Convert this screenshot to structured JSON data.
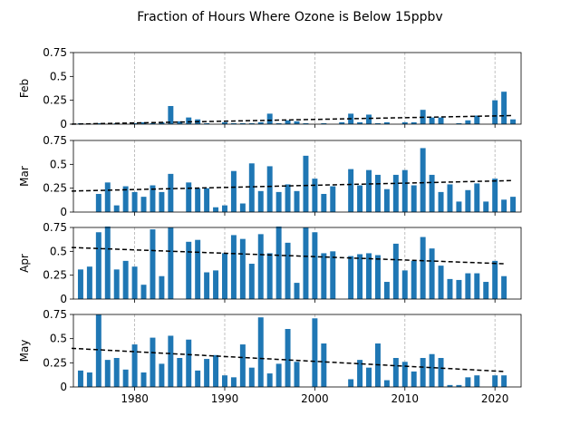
{
  "title": "Fraction of Hours Where Ozone is Below 15ppbv",
  "chart_data": [
    {
      "type": "bar",
      "ylabel": "Feb",
      "color": "#1f77b4",
      "x": [
        1974,
        1975,
        1976,
        1977,
        1978,
        1979,
        1980,
        1981,
        1982,
        1983,
        1984,
        1985,
        1986,
        1987,
        1988,
        1989,
        1990,
        1991,
        1992,
        1993,
        1994,
        1995,
        1996,
        1997,
        1998,
        1999,
        2000,
        2001,
        2002,
        2003,
        2004,
        2005,
        2006,
        2007,
        2008,
        2009,
        2010,
        2011,
        2012,
        2013,
        2014,
        2015,
        2016,
        2017,
        2018,
        2019,
        2020,
        2021,
        2022
      ],
      "values": [
        0.01,
        0,
        0.01,
        0,
        0.01,
        0,
        0.01,
        0.02,
        0.01,
        0.02,
        0.19,
        0.03,
        0.07,
        0.05,
        0.01,
        0,
        0.02,
        0.01,
        0.01,
        0.01,
        0.02,
        0.11,
        0.01,
        0.04,
        0.03,
        0.01,
        0,
        0.01,
        0,
        0.02,
        0.11,
        0.02,
        0.1,
        0.01,
        0.02,
        0,
        0.02,
        0.02,
        0.15,
        0.07,
        0.07,
        0,
        0.01,
        0.04,
        0.09,
        0,
        0.25,
        0.34,
        0.05
      ],
      "trend": {
        "x": [
          1973,
          2022
        ],
        "values": [
          0.0,
          0.09
        ]
      },
      "xlim": [
        1973.2,
        2022.9
      ],
      "xticks": [
        1980,
        1990,
        2000,
        2010,
        2020
      ],
      "ylim": [
        0,
        0.75
      ],
      "yticks": [
        0,
        0.25,
        0.5,
        0.75
      ]
    },
    {
      "type": "bar",
      "ylabel": "Mar",
      "color": "#1f77b4",
      "x": [
        1974,
        1975,
        1976,
        1977,
        1978,
        1979,
        1980,
        1981,
        1982,
        1983,
        1984,
        1985,
        1986,
        1987,
        1988,
        1989,
        1990,
        1991,
        1992,
        1993,
        1994,
        1995,
        1996,
        1997,
        1998,
        1999,
        2000,
        2001,
        2002,
        2003,
        2004,
        2005,
        2006,
        2007,
        2008,
        2009,
        2010,
        2011,
        2012,
        2013,
        2014,
        2015,
        2016,
        2017,
        2018,
        2019,
        2020,
        2021,
        2022
      ],
      "values": [
        0,
        0,
        0.19,
        0.31,
        0.07,
        0.27,
        0.21,
        0.16,
        0.28,
        0.21,
        0.4,
        0,
        0.31,
        0.25,
        0.25,
        0.05,
        0.07,
        0.43,
        0.09,
        0.51,
        0.22,
        0.48,
        0.21,
        0.29,
        0.22,
        0.59,
        0.35,
        0.19,
        0.27,
        0,
        0.45,
        0.28,
        0.44,
        0.39,
        0.24,
        0.39,
        0.44,
        0.28,
        0.67,
        0.39,
        0.21,
        0.29,
        0.11,
        0.23,
        0.3,
        0.11,
        0.35,
        0.13,
        0.16
      ],
      "trend": {
        "x": [
          1973,
          2022
        ],
        "values": [
          0.22,
          0.33
        ]
      },
      "xlim": [
        1973.2,
        2022.9
      ],
      "xticks": [
        1980,
        1990,
        2000,
        2010,
        2020
      ],
      "ylim": [
        0,
        0.75
      ],
      "yticks": [
        0,
        0.25,
        0.5,
        0.75
      ]
    },
    {
      "type": "bar",
      "ylabel": "Apr",
      "color": "#1f77b4",
      "x": [
        1974,
        1975,
        1976,
        1977,
        1978,
        1979,
        1980,
        1981,
        1982,
        1983,
        1984,
        1985,
        1986,
        1987,
        1988,
        1989,
        1990,
        1991,
        1992,
        1993,
        1994,
        1995,
        1996,
        1997,
        1998,
        1999,
        2000,
        2001,
        2002,
        2003,
        2004,
        2005,
        2006,
        2007,
        2008,
        2009,
        2010,
        2011,
        2012,
        2013,
        2014,
        2015,
        2016,
        2017,
        2018,
        2019,
        2020,
        2021,
        2022
      ],
      "values": [
        0.31,
        0.34,
        0.7,
        0.76,
        0.31,
        0.4,
        0.34,
        0.15,
        0.73,
        0.24,
        0.75,
        0,
        0.6,
        0.62,
        0.28,
        0.3,
        0.48,
        0.67,
        0.63,
        0.37,
        0.68,
        0.48,
        0.76,
        0.59,
        0.17,
        0.75,
        0.7,
        0.48,
        0.5,
        0,
        0.45,
        0.47,
        0.48,
        0.46,
        0.18,
        0.58,
        0.3,
        0.4,
        0.65,
        0.53,
        0.35,
        0.21,
        0.2,
        0.27,
        0.27,
        0.18,
        0.4,
        0.24,
        0
      ],
      "trend": {
        "x": [
          1973,
          2021
        ],
        "values": [
          0.54,
          0.37
        ]
      },
      "xlim": [
        1973.2,
        2022.9
      ],
      "xticks": [
        1980,
        1990,
        2000,
        2010,
        2020
      ],
      "ylim": [
        0,
        0.75
      ],
      "yticks": [
        0,
        0.25,
        0.5,
        0.75
      ]
    },
    {
      "type": "bar",
      "ylabel": "May",
      "color": "#1f77b4",
      "x": [
        1974,
        1975,
        1976,
        1977,
        1978,
        1979,
        1980,
        1981,
        1982,
        1983,
        1984,
        1985,
        1986,
        1987,
        1988,
        1989,
        1990,
        1991,
        1992,
        1993,
        1994,
        1995,
        1996,
        1997,
        1998,
        1999,
        2000,
        2001,
        2002,
        2003,
        2004,
        2005,
        2006,
        2007,
        2008,
        2009,
        2010,
        2011,
        2012,
        2013,
        2014,
        2015,
        2016,
        2017,
        2018,
        2019,
        2020,
        2021,
        2022
      ],
      "values": [
        0.17,
        0.15,
        0.75,
        0.28,
        0.3,
        0.18,
        0.44,
        0.15,
        0.51,
        0.24,
        0.53,
        0.3,
        0.49,
        0.17,
        0.29,
        0.33,
        0.12,
        0.1,
        0.44,
        0.2,
        0.72,
        0.14,
        0.24,
        0.6,
        0.26,
        0,
        0.71,
        0.45,
        0,
        0,
        0.08,
        0.28,
        0.2,
        0.45,
        0.07,
        0.3,
        0.26,
        0.16,
        0.3,
        0.34,
        0.3,
        0.02,
        0.02,
        0.1,
        0.12,
        0,
        0.12,
        0.12,
        0
      ],
      "trend": {
        "x": [
          1973,
          2021
        ],
        "values": [
          0.4,
          0.16
        ]
      },
      "xlim": [
        1973.2,
        2022.9
      ],
      "xticks": [
        1980,
        1990,
        2000,
        2010,
        2020
      ],
      "ylim": [
        0,
        0.75
      ],
      "yticks": [
        0,
        0.25,
        0.5,
        0.75
      ]
    }
  ]
}
